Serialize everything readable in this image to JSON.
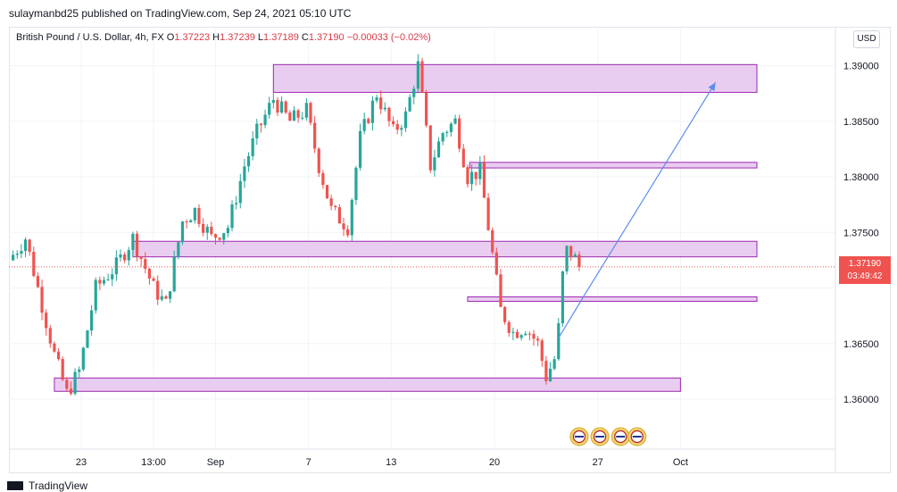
{
  "header": {
    "published": "sulaymanbd25 published on TradingView.com, Sep 24, 2021 05:10 UTC"
  },
  "legend": {
    "symbol": "British Pound / U.S. Dollar, 4h, FX",
    "o_label": "O",
    "o": "1.37223",
    "h_label": "H",
    "h": "1.37239",
    "l_label": "L",
    "l": "1.37189",
    "c_label": "C",
    "c": "1.37190",
    "change": "−0.00033 (−0.02%)"
  },
  "currency_button": "USD",
  "price_tag": {
    "price": "1.37190",
    "countdown": "03:49:42"
  },
  "footer": {
    "brand": "TradingView"
  },
  "colors": {
    "up": "#26a69a",
    "down": "#ef5350",
    "zone_fill": "#e9cdf0",
    "zone_stroke": "#9c27b0",
    "arrow": "#5b8def",
    "tag": "#ef5350"
  },
  "chart_data": {
    "type": "candlestick",
    "title": "British Pound / U.S. Dollar, 4h, FX",
    "ylim": [
      1.3555,
      1.3935
    ],
    "y_ticks": [
      1.36,
      1.365,
      1.37,
      1.375,
      1.38,
      1.385,
      1.39
    ],
    "y_tick_labels": [
      "1.36000",
      "1.36500",
      "",
      "1.37500",
      "1.38000",
      "1.38500",
      "1.39000"
    ],
    "x_range": [
      0,
      40
    ],
    "x_ticks": [
      {
        "x": 3.5,
        "label": "23"
      },
      {
        "x": 7.0,
        "label": "13:00"
      },
      {
        "x": 10.0,
        "label": "Sep"
      },
      {
        "x": 14.5,
        "label": "7"
      },
      {
        "x": 18.5,
        "label": "13"
      },
      {
        "x": 23.5,
        "label": "20"
      },
      {
        "x": 28.5,
        "label": "27"
      },
      {
        "x": 32.5,
        "label": "Oct"
      }
    ],
    "last_price": 1.3719,
    "close_path": [
      [
        0.0,
        1.3725
      ],
      [
        0.8,
        1.3745
      ],
      [
        1.4,
        1.37
      ],
      [
        2.2,
        1.364
      ],
      [
        2.8,
        1.3605
      ],
      [
        3.4,
        1.3625
      ],
      [
        4.2,
        1.37
      ],
      [
        5.2,
        1.372
      ],
      [
        6.0,
        1.3745
      ],
      [
        7.0,
        1.37
      ],
      [
        7.6,
        1.3685
      ],
      [
        8.4,
        1.376
      ],
      [
        9.0,
        1.377
      ],
      [
        9.8,
        1.3745
      ],
      [
        10.6,
        1.3755
      ],
      [
        11.4,
        1.381
      ],
      [
        12.0,
        1.384
      ],
      [
        12.8,
        1.387
      ],
      [
        13.6,
        1.385
      ],
      [
        14.4,
        1.386
      ],
      [
        15.0,
        1.381
      ],
      [
        15.6,
        1.377
      ],
      [
        16.4,
        1.3755
      ],
      [
        17.0,
        1.3835
      ],
      [
        17.8,
        1.3875
      ],
      [
        18.6,
        1.384
      ],
      [
        19.2,
        1.3855
      ],
      [
        19.8,
        1.39
      ],
      [
        20.4,
        1.381
      ],
      [
        21.0,
        1.384
      ],
      [
        21.6,
        1.385
      ],
      [
        22.2,
        1.38
      ],
      [
        22.8,
        1.3805
      ],
      [
        23.4,
        1.373
      ],
      [
        23.8,
        1.368
      ],
      [
        24.4,
        1.366
      ],
      [
        25.0,
        1.3665
      ],
      [
        25.6,
        1.365
      ],
      [
        26.0,
        1.362
      ],
      [
        26.5,
        1.364
      ],
      [
        26.9,
        1.3735
      ],
      [
        27.3,
        1.373
      ],
      [
        27.6,
        1.3719
      ]
    ],
    "zones": [
      {
        "x0": 12.8,
        "x1": 36.2,
        "y0": 1.3876,
        "y1": 1.3901
      },
      {
        "x0": 22.3,
        "x1": 36.2,
        "y0": 1.3808,
        "y1": 1.3813
      },
      {
        "x0": 6.0,
        "x1": 36.2,
        "y0": 1.3728,
        "y1": 1.3742
      },
      {
        "x0": 22.2,
        "x1": 36.2,
        "y0": 1.3688,
        "y1": 1.3692
      },
      {
        "x0": 2.2,
        "x1": 32.5,
        "y0": 1.3607,
        "y1": 1.3619
      }
    ],
    "projection": [
      [
        26.6,
        1.3655
      ],
      [
        27.9,
        1.3695
      ],
      [
        34.2,
        1.3885
      ]
    ],
    "event_icons": [
      {
        "x": 27.6
      },
      {
        "x": 28.6
      },
      {
        "x": 29.6
      },
      {
        "x": 30.4
      }
    ]
  }
}
